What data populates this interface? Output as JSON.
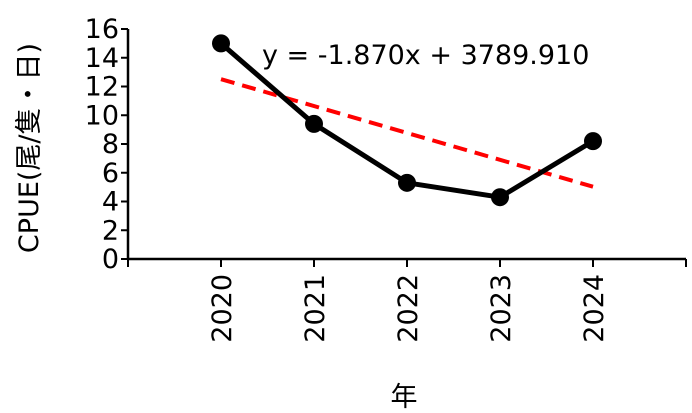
{
  "chart_data": {
    "type": "line",
    "categories": [
      "2020",
      "2021",
      "2022",
      "2023",
      "2024"
    ],
    "x": [
      2020,
      2021,
      2022,
      2023,
      2024
    ],
    "xlabel": "年",
    "ylabel": "CPUE(尾/隻・日)",
    "ylim": [
      0,
      16
    ],
    "yticks": [
      "0",
      "2",
      "4",
      "6",
      "8",
      "10",
      "12",
      "14",
      "16"
    ],
    "series": [
      {
        "values": [
          15.0,
          9.4,
          5.3,
          4.3,
          8.2
        ]
      }
    ],
    "trendline": {
      "label": "y = -1.870x + 3789.910",
      "slope": -1.87,
      "intercept": 3789.91
    },
    "grid": false,
    "colors": {
      "series": "#000000",
      "trend": "#ff0000"
    }
  }
}
